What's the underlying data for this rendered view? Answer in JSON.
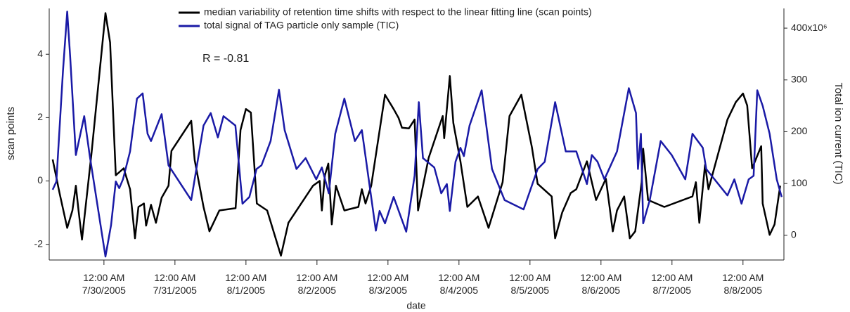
{
  "chart_data": {
    "type": "line",
    "xlabel": "date",
    "ylabel": "scan points",
    "y2label": "Total ion current (TIC)",
    "annotation": "R = -0.81",
    "xlim": [
      "2005-07-29T05:30",
      "2005-08-08T13:50"
    ],
    "xticks": [
      {
        "value": "2005-07-30T00:00",
        "label": "12:00 AM\n7/30/2005"
      },
      {
        "value": "2005-07-31T00:00",
        "label": "12:00 AM\n7/31/2005"
      },
      {
        "value": "2005-08-01T00:00",
        "label": "12:00 AM\n8/1/2005"
      },
      {
        "value": "2005-08-02T00:00",
        "label": "12:00 AM\n8/2/2005"
      },
      {
        "value": "2005-08-03T00:00",
        "label": "12:00 AM\n8/3/2005"
      },
      {
        "value": "2005-08-04T00:00",
        "label": "12:00 AM\n8/4/2005"
      },
      {
        "value": "2005-08-05T00:00",
        "label": "12:00 AM\n8/5/2005"
      },
      {
        "value": "2005-08-06T00:00",
        "label": "12:00 AM\n8/6/2005"
      },
      {
        "value": "2005-08-07T00:00",
        "label": "12:00 AM\n8/7/2005"
      },
      {
        "value": "2005-08-08T00:00",
        "label": "12:00 AM\n8/8/2005"
      }
    ],
    "ylim": [
      -2.45,
      5.38
    ],
    "yticks": [
      -2,
      0,
      2,
      4
    ],
    "y2lim": [
      -45,
      434
    ],
    "y2ticks": [
      0,
      100,
      200,
      300,
      {
        "value": 400,
        "label": "400x10⁶"
      }
    ],
    "series": [
      {
        "name": "median variability of retention time shifts with respect to the linear fitting line (scan points)",
        "color": "#000000",
        "axis": "y",
        "x": [
          "2005-07-29T06:40",
          "2005-07-29T09:00",
          "2005-07-29T11:35",
          "2005-07-29T13:20",
          "2005-07-29T14:30",
          "2005-07-29T15:25",
          "2005-07-29T16:35",
          "2005-07-29T19:45",
          "2005-07-30T00:30",
          "2005-07-30T02:05",
          "2005-07-30T04:00",
          "2005-07-30T06:40",
          "2005-07-30T08:50",
          "2005-07-30T10:30",
          "2005-07-30T11:40",
          "2005-07-30T13:30",
          "2005-07-30T14:15",
          "2005-07-30T15:55",
          "2005-07-30T17:35",
          "2005-07-30T19:30",
          "2005-07-30T21:50",
          "2005-07-30T22:50",
          "2005-07-31T05:30",
          "2005-07-31T06:40",
          "2005-07-31T09:40",
          "2005-07-31T11:40",
          "2005-07-31T15:00",
          "2005-07-31T20:30",
          "2005-07-31T22:10",
          "2005-08-01T00:00",
          "2005-08-01T01:40",
          "2005-08-01T03:40",
          "2005-08-01T07:10",
          "2005-08-01T11:50",
          "2005-08-01T14:20",
          "2005-08-01T22:40",
          "2005-08-02T00:55",
          "2005-08-02T01:40",
          "2005-08-02T02:40",
          "2005-08-02T03:50",
          "2005-08-02T05:00",
          "2005-08-02T06:25",
          "2005-08-02T09:15",
          "2005-08-02T14:00",
          "2005-08-02T15:10",
          "2005-08-02T16:25",
          "2005-08-02T18:20",
          "2005-08-02T23:00",
          "2005-08-03T01:55",
          "2005-08-03T03:35",
          "2005-08-03T04:45",
          "2005-08-03T07:05",
          "2005-08-03T09:00",
          "2005-08-03T10:10",
          "2005-08-03T13:45",
          "2005-08-03T18:30",
          "2005-08-03T19:00",
          "2005-08-03T20:55",
          "2005-08-03T22:05",
          "2005-08-04T00:30",
          "2005-08-04T02:50",
          "2005-08-04T06:25",
          "2005-08-04T10:00",
          "2005-08-04T14:45",
          "2005-08-04T17:05",
          "2005-08-04T21:05",
          "2005-08-05T00:40",
          "2005-08-05T02:35",
          "2005-08-05T07:20",
          "2005-08-05T08:30",
          "2005-08-05T10:55",
          "2005-08-05T13:45",
          "2005-08-05T15:40",
          "2005-08-05T19:15",
          "2005-08-05T22:20",
          "2005-08-06T01:40",
          "2005-08-06T04:00",
          "2005-08-06T05:25",
          "2005-08-06T07:50",
          "2005-08-06T09:45",
          "2005-08-06T11:35",
          "2005-08-06T13:45",
          "2005-08-06T14:15",
          "2005-08-06T15:55",
          "2005-08-06T21:25",
          "2005-08-07T06:55",
          "2005-08-07T08:05",
          "2005-08-07T09:15",
          "2005-08-07T11:10",
          "2005-08-07T12:20",
          "2005-08-07T18:45",
          "2005-08-07T21:35",
          "2005-08-08T00:00",
          "2005-08-08T01:25",
          "2005-08-08T03:05",
          "2005-08-08T06:10",
          "2005-08-08T06:40",
          "2005-08-08T09:00",
          "2005-08-08T10:40",
          "2005-08-08T12:35"
        ],
        "values": [
          0.68,
          -0.38,
          -1.48,
          -0.93,
          -0.15,
          -0.93,
          -1.85,
          0.84,
          5.3,
          4.37,
          0.18,
          0.4,
          -0.26,
          -1.81,
          -0.82,
          -0.71,
          -1.41,
          -0.75,
          -1.32,
          -0.53,
          -0.15,
          0.95,
          1.9,
          0.66,
          -0.82,
          -1.59,
          -0.93,
          -0.86,
          1.61,
          2.27,
          2.16,
          -0.71,
          -0.93,
          -2.36,
          -1.32,
          -0.15,
          0,
          -0.93,
          0.18,
          0.55,
          -1.37,
          -0.15,
          -0.93,
          -0.82,
          -0.26,
          -0.71,
          -0.15,
          2.72,
          2.27,
          1.99,
          1.68,
          1.66,
          1.94,
          -0.93,
          0.73,
          2.05,
          1.35,
          3.31,
          1.83,
          0.62,
          -0.82,
          -0.49,
          -1.48,
          -0.04,
          2.05,
          2.72,
          1.06,
          -0.09,
          -0.49,
          -1.81,
          -0.99,
          -0.38,
          -0.26,
          0.62,
          -0.6,
          0.07,
          -1.59,
          -0.93,
          -0.49,
          -1.81,
          -1.59,
          -0.04,
          1.02,
          -0.6,
          -0.82,
          -0.49,
          -0.04,
          -1.32,
          0.51,
          -0.26,
          1.94,
          2.49,
          2.76,
          2.38,
          0.4,
          1.1,
          -0.71,
          -1.7,
          -1.37,
          -0.15
        ]
      },
      {
        "name": "total signal of TAG particle only sample (TIC)",
        "color": "#1a1aa6",
        "axis": "y2",
        "x": [
          "2005-07-29T06:40",
          "2005-07-29T07:55",
          "2005-07-29T10:10",
          "2005-07-29T11:35",
          "2005-07-29T12:35",
          "2005-07-29T14:30",
          "2005-07-29T17:20",
          "2005-07-29T19:10",
          "2005-07-30T00:30",
          "2005-07-30T02:25",
          "2005-07-30T04:00",
          "2005-07-30T05:10",
          "2005-07-30T06:25",
          "2005-07-30T08:50",
          "2005-07-30T11:10",
          "2005-07-30T13:05",
          "2005-07-30T14:45",
          "2005-07-30T15:55",
          "2005-07-30T19:30",
          "2005-07-30T21:50",
          "2005-07-31T05:30",
          "2005-07-31T09:40",
          "2005-07-31T12:05",
          "2005-07-31T14:30",
          "2005-07-31T16:25",
          "2005-07-31T20:25",
          "2005-07-31T22:50",
          "2005-08-01T01:10",
          "2005-08-01T03:35",
          "2005-08-01T05:15",
          "2005-08-01T08:20",
          "2005-08-01T11:10",
          "2005-08-01T13:05",
          "2005-08-01T17:05",
          "2005-08-01T20:10",
          "2005-08-01T23:45",
          "2005-08-02T01:40",
          "2005-08-02T04:00",
          "2005-08-02T06:10",
          "2005-08-02T09:15",
          "2005-08-02T12:50",
          "2005-08-02T15:10",
          "2005-08-02T19:55",
          "2005-08-02T21:10",
          "2005-08-02T23:00",
          "2005-08-03T01:55",
          "2005-08-03T06:10",
          "2005-08-03T09:00",
          "2005-08-03T10:25",
          "2005-08-03T11:50",
          "2005-08-03T15:40",
          "2005-08-03T18:00",
          "2005-08-03T19:55",
          "2005-08-03T20:55",
          "2005-08-03T22:50",
          "2005-08-04T00:30",
          "2005-08-04T01:40",
          "2005-08-04T03:35",
          "2005-08-04T07:40",
          "2005-08-04T11:10",
          "2005-08-04T15:25",
          "2005-08-04T21:50",
          "2005-08-05T02:35",
          "2005-08-05T05:00",
          "2005-08-05T08:30",
          "2005-08-05T12:05",
          "2005-08-05T15:40",
          "2005-08-05T19:15",
          "2005-08-05T20:55",
          "2005-08-05T22:50",
          "2005-08-06T01:10",
          "2005-08-06T05:25",
          "2005-08-06T09:25",
          "2005-08-06T11:50",
          "2005-08-06T12:30",
          "2005-08-06T13:30",
          "2005-08-06T14:15",
          "2005-08-06T16:30",
          "2005-08-06T20:10",
          "2005-08-06T23:55",
          "2005-08-07T04:30",
          "2005-08-07T06:55",
          "2005-08-07T10:25",
          "2005-08-07T11:35",
          "2005-08-07T18:45",
          "2005-08-07T21:05",
          "2005-08-07T23:30",
          "2005-08-08T01:55",
          "2005-08-08T03:35",
          "2005-08-08T04:50",
          "2005-08-08T06:40",
          "2005-08-08T09:00",
          "2005-08-08T11:25",
          "2005-08-08T13:05"
        ],
        "values": [
          88,
          104,
          318,
          432,
          345,
          155,
          230,
          155,
          -41,
          20,
          104,
          91,
          108,
          162,
          264,
          274,
          196,
          182,
          234,
          135,
          68,
          212,
          236,
          189,
          230,
          212,
          61,
          74,
          128,
          135,
          182,
          281,
          203,
          128,
          149,
          108,
          131,
          81,
          196,
          264,
          182,
          203,
          9,
          47,
          23,
          74,
          7,
          115,
          257,
          149,
          131,
          81,
          99,
          47,
          142,
          169,
          153,
          212,
          280,
          128,
          68,
          50,
          128,
          142,
          257,
          162,
          162,
          99,
          155,
          142,
          108,
          162,
          284,
          236,
          128,
          196,
          23,
          68,
          182,
          155,
          108,
          196,
          169,
          128,
          77,
          108,
          61,
          108,
          115,
          280,
          250,
          196,
          108,
          74
        ]
      }
    ]
  }
}
